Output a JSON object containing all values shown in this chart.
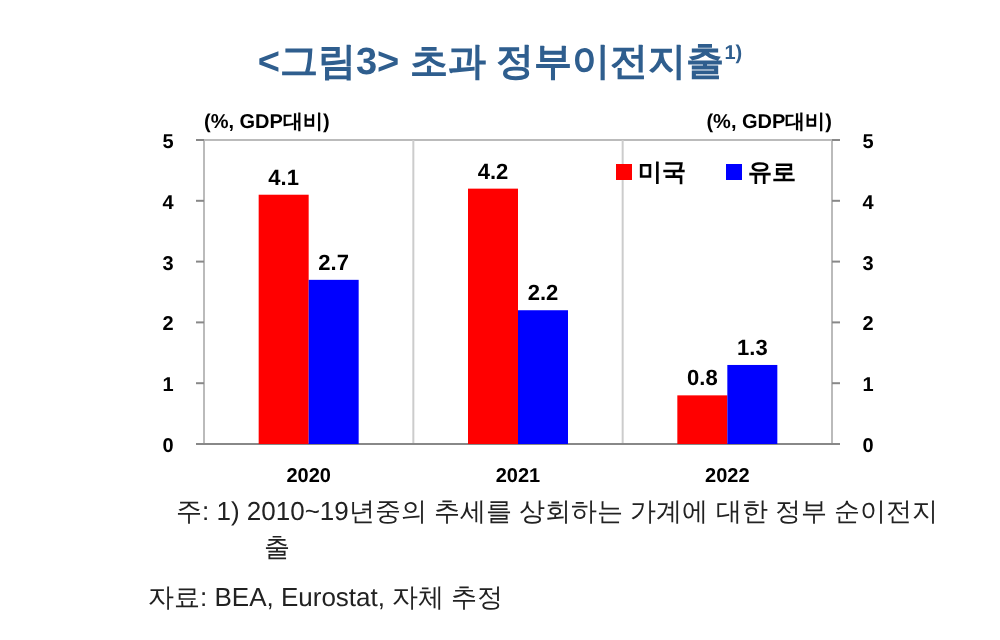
{
  "chart_data": {
    "type": "bar",
    "title": "<그림3> 초과 정부이전지출$^{1)}$",
    "categories": [
      "2020",
      "2021",
      "2022"
    ],
    "series": [
      {
        "name": "미국",
        "color": "#ff0000",
        "values": [
          4.1,
          4.2,
          0.8
        ]
      },
      {
        "name": "유로",
        "color": "#0000ff",
        "values": [
          2.7,
          2.2,
          1.3
        ]
      }
    ],
    "ylabel": "(%, GDP대비)",
    "y2label": "(%, GDP대비)",
    "ylim": [
      0,
      5
    ],
    "yticks": [
      0,
      1,
      2,
      3,
      4,
      5
    ],
    "y2lim": [
      0,
      5
    ],
    "y2ticks": [
      0,
      1,
      2,
      3,
      4,
      5
    ],
    "data_labels": true,
    "grid": "x",
    "legend": "top right",
    "annotations": [
      "주: 1) 2010~19년중의 추세를 상회하는 가계에 대한 정부 순이전지출",
      "자료: BEA, Eurostat, 자체 추정"
    ]
  }
}
